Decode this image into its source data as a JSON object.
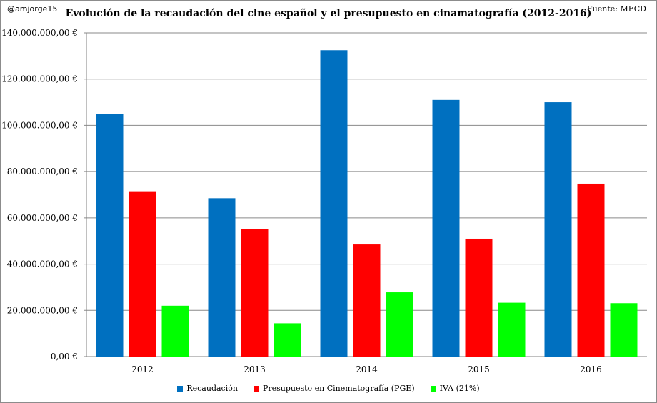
{
  "header": {
    "handle": "@amjorge15",
    "title": "Evolución de la recaudación del cine español y el presupuesto en cinamatografía (2012-2016)",
    "source": "Fuente: MECD"
  },
  "chart_data": {
    "type": "bar",
    "title": "Evolución de la recaudación del cine español y el presupuesto en cinamatografía (2012-2016)",
    "categories": [
      "2012",
      "2013",
      "2014",
      "2015",
      "2016"
    ],
    "series": [
      {
        "name": "Recaudación",
        "color": "#0070C0",
        "values": [
          105000000,
          68500000,
          132500000,
          111000000,
          110000000
        ]
      },
      {
        "name": "Presupuesto en Cinematografía (PGE)",
        "color": "#FF0000",
        "values": [
          71200000,
          55300000,
          48500000,
          51000000,
          74800000
        ]
      },
      {
        "name": "IVA (21%)",
        "color": "#00FF00",
        "values": [
          22000000,
          14400000,
          27800000,
          23300000,
          23100000
        ]
      }
    ],
    "ylim": [
      0,
      140000000
    ],
    "yticks": [
      "0,00 €",
      "20.000.000,00 €",
      "40.000.000,00 €",
      "60.000.000,00 €",
      "80.000.000,00 €",
      "100.000.000,00 €",
      "120.000.000,00 €",
      "140.000.000,00 €"
    ],
    "ytick_values": [
      0,
      20000000,
      40000000,
      60000000,
      80000000,
      100000000,
      120000000,
      140000000
    ],
    "grid": true,
    "legend_position": "bottom"
  }
}
